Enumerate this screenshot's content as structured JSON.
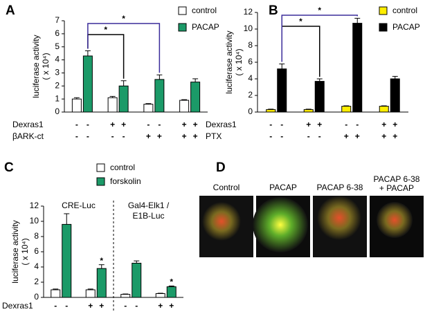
{
  "chart_data": [
    {
      "type": "bar",
      "letter": "A",
      "ylabel": "luciferase activity",
      "ylabel_unit": "( x 10⁴)",
      "ylim": [
        0,
        7
      ],
      "yticks": [
        0,
        1,
        2,
        3,
        4,
        5,
        6,
        7
      ],
      "series": [
        {
          "name": "control",
          "color": "#ffffff",
          "values": [
            1.0,
            1.1,
            0.6,
            0.9
          ],
          "errors": [
            0.1,
            0.1,
            0.05,
            0.05
          ]
        },
        {
          "name": "PACAP",
          "color": "#1b9a68",
          "values": [
            4.3,
            2.0,
            2.5,
            2.3
          ],
          "errors": [
            0.4,
            0.4,
            0.35,
            0.25
          ]
        }
      ],
      "condition_rows": [
        {
          "label": "Dexras1",
          "signs": [
            "-",
            "-",
            "+",
            "+",
            "-",
            "-",
            "+",
            "+"
          ]
        },
        {
          "label": "βARK-ct",
          "signs": [
            "-",
            "-",
            "-",
            "-",
            "+",
            "+",
            "+",
            "+"
          ]
        }
      ],
      "annotations": [
        {
          "text": "*",
          "color": "#000000",
          "groups": [
            0,
            1
          ]
        },
        {
          "text": "*",
          "color": "#3a2b9a",
          "groups": [
            0,
            2
          ]
        }
      ]
    },
    {
      "type": "bar",
      "letter": "B",
      "ylabel": "luciferase activity",
      "ylabel_unit": "( x 10⁴)",
      "ylim": [
        0,
        12
      ],
      "yticks": [
        0,
        2,
        4,
        6,
        8,
        10,
        12
      ],
      "series": [
        {
          "name": "control",
          "color": "#ffee00",
          "values": [
            0.3,
            0.3,
            0.7,
            0.7
          ],
          "errors": [
            0.05,
            0.05,
            0.05,
            0.05
          ]
        },
        {
          "name": "PACAP",
          "color": "#000000",
          "values": [
            5.2,
            3.7,
            10.7,
            4.0
          ],
          "errors": [
            0.6,
            0.3,
            0.6,
            0.3
          ]
        }
      ],
      "condition_rows": [
        {
          "label": "Dexras1",
          "signs": [
            "-",
            "-",
            "+",
            "+",
            "-",
            "-",
            "+",
            "+"
          ]
        },
        {
          "label": "PTX",
          "signs": [
            "-",
            "-",
            "-",
            "-",
            "+",
            "+",
            "+",
            "+"
          ]
        }
      ],
      "annotations": [
        {
          "text": "*",
          "color": "#000000",
          "groups": [
            0,
            1
          ]
        },
        {
          "text": "*",
          "color": "#3a2b9a",
          "groups": [
            0,
            2
          ]
        }
      ]
    },
    {
      "type": "bar",
      "letter": "C",
      "ylabel": "luciferase activity",
      "ylabel_unit": "( x 10⁴)",
      "ylim": [
        0,
        12
      ],
      "yticks": [
        0,
        2,
        4,
        6,
        8,
        10,
        12
      ],
      "series": [
        {
          "name": "control",
          "color": "#ffffff",
          "values": [
            1.0,
            1.0,
            0.4,
            0.5
          ],
          "errors": [
            0.1,
            0.1,
            0.05,
            0.05
          ]
        },
        {
          "name": "forskolin",
          "color": "#1b9a68",
          "values": [
            9.6,
            3.8,
            4.5,
            1.4
          ],
          "errors": [
            1.4,
            0.5,
            0.3,
            0.1
          ]
        }
      ],
      "condition_rows": [
        {
          "label": "Dexras1",
          "signs": [
            "-",
            "-",
            "+",
            "+",
            "-",
            "-",
            "+",
            "+"
          ]
        }
      ],
      "sections": [
        [
          "CRE-Luc"
        ],
        [
          "Gal4-Elk1 /",
          "E1B-Luc"
        ]
      ],
      "annotations": [
        {
          "text": "*",
          "color": "#000000",
          "group": 1
        },
        {
          "text": "*",
          "color": "#000000",
          "group": 3
        }
      ]
    }
  ],
  "panel_d": {
    "letter": "D",
    "images": [
      "Control",
      "PACAP",
      "PACAP 6-38",
      [
        "PACAP 6-38",
        "+ PACAP"
      ]
    ]
  }
}
